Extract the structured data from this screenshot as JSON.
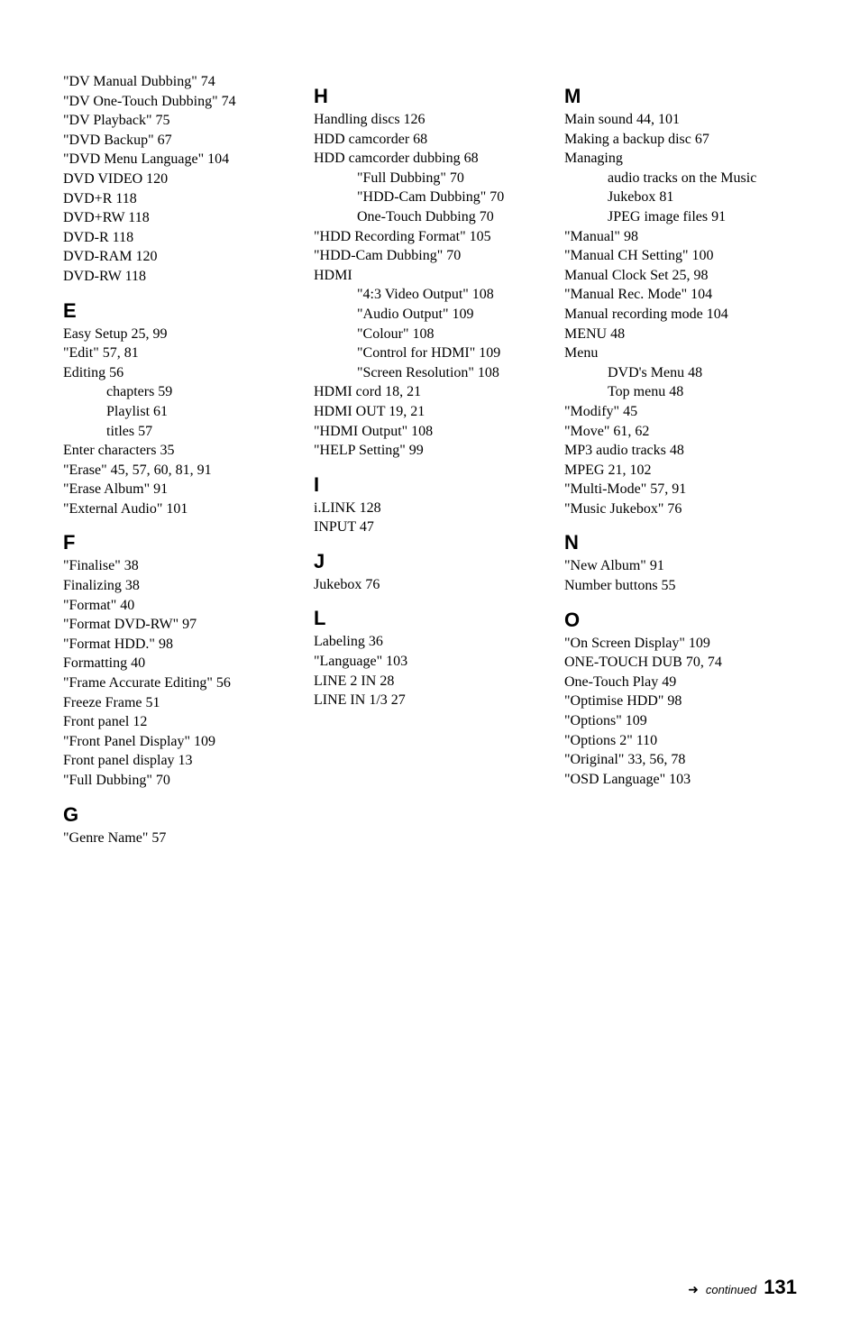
{
  "columns": [
    {
      "blocks": [
        {
          "letter": null,
          "entries": [
            {
              "text": "\"DV Manual Dubbing\" 74",
              "indent": 0
            },
            {
              "text": "\"DV One-Touch Dubbing\" 74",
              "indent": 0
            },
            {
              "text": "\"DV Playback\" 75",
              "indent": 0
            },
            {
              "text": "\"DVD Backup\" 67",
              "indent": 0
            },
            {
              "text": "\"DVD Menu Language\" 104",
              "indent": 0
            },
            {
              "text": "DVD VIDEO 120",
              "indent": 0
            },
            {
              "text": "DVD+R 118",
              "indent": 0
            },
            {
              "text": "DVD+RW 118",
              "indent": 0
            },
            {
              "text": "DVD-R 118",
              "indent": 0
            },
            {
              "text": "DVD-RAM 120",
              "indent": 0
            },
            {
              "text": "DVD-RW 118",
              "indent": 0
            }
          ]
        },
        {
          "letter": "E",
          "entries": [
            {
              "text": "Easy Setup 25, 99",
              "indent": 0
            },
            {
              "text": "\"Edit\" 57, 81",
              "indent": 0
            },
            {
              "text": "Editing 56",
              "indent": 0
            },
            {
              "text": "chapters 59",
              "indent": 1
            },
            {
              "text": "Playlist 61",
              "indent": 1
            },
            {
              "text": "titles 57",
              "indent": 1
            },
            {
              "text": "Enter characters 35",
              "indent": 0
            },
            {
              "text": "\"Erase\" 45, 57, 60, 81, 91",
              "indent": 0
            },
            {
              "text": "\"Erase Album\" 91",
              "indent": 0
            },
            {
              "text": "\"External Audio\" 101",
              "indent": 0
            }
          ]
        },
        {
          "letter": "F",
          "entries": [
            {
              "text": "\"Finalise\" 38",
              "indent": 0
            },
            {
              "text": "Finalizing 38",
              "indent": 0
            },
            {
              "text": "\"Format\" 40",
              "indent": 0
            },
            {
              "text": "\"Format DVD-RW\" 97",
              "indent": 0
            },
            {
              "text": "\"Format HDD.\" 98",
              "indent": 0
            },
            {
              "text": "Formatting 40",
              "indent": 0
            },
            {
              "text": "\"Frame Accurate Editing\" 56",
              "indent": 0
            },
            {
              "text": "Freeze Frame 51",
              "indent": 0
            },
            {
              "text": "Front panel 12",
              "indent": 0
            },
            {
              "text": "\"Front Panel Display\" 109",
              "indent": 0
            },
            {
              "text": "Front panel display 13",
              "indent": 0
            },
            {
              "text": "\"Full Dubbing\" 70",
              "indent": 0
            }
          ]
        },
        {
          "letter": "G",
          "entries": [
            {
              "text": "\"Genre Name\" 57",
              "indent": 0
            }
          ]
        }
      ]
    },
    {
      "blocks": [
        {
          "letter": "H",
          "entries": [
            {
              "text": "Handling discs 126",
              "indent": 0
            },
            {
              "text": "HDD camcorder 68",
              "indent": 0
            },
            {
              "text": "HDD camcorder dubbing 68",
              "indent": 0
            },
            {
              "text": "\"Full Dubbing\" 70",
              "indent": 1
            },
            {
              "text": "\"HDD-Cam Dubbing\" 70",
              "indent": 1
            },
            {
              "text": "One-Touch Dubbing 70",
              "indent": 1
            },
            {
              "text": "\"HDD Recording Format\" 105",
              "indent": 0
            },
            {
              "text": "\"HDD-Cam Dubbing\" 70",
              "indent": 0
            },
            {
              "text": "HDMI",
              "indent": 0
            },
            {
              "text": "\"4:3 Video Output\" 108",
              "indent": 1
            },
            {
              "text": "\"Audio Output\" 109",
              "indent": 1
            },
            {
              "text": "\"Colour\" 108",
              "indent": 1
            },
            {
              "text": "\"Control for HDMI\" 109",
              "indent": 1
            },
            {
              "text": "\"Screen Resolution\" 108",
              "indent": 1
            },
            {
              "text": "HDMI cord 18, 21",
              "indent": 0
            },
            {
              "text": "HDMI OUT 19, 21",
              "indent": 0
            },
            {
              "text": "\"HDMI Output\" 108",
              "indent": 0
            },
            {
              "text": "\"HELP Setting\" 99",
              "indent": 0
            }
          ]
        },
        {
          "letter": "I",
          "entries": [
            {
              "text": "i.LINK 128",
              "indent": 0
            },
            {
              "text": "INPUT 47",
              "indent": 0
            }
          ]
        },
        {
          "letter": "J",
          "entries": [
            {
              "text": "Jukebox 76",
              "indent": 0
            }
          ]
        },
        {
          "letter": "L",
          "entries": [
            {
              "text": "Labeling 36",
              "indent": 0
            },
            {
              "text": "\"Language\" 103",
              "indent": 0
            },
            {
              "text": "LINE 2 IN 28",
              "indent": 0
            },
            {
              "text": "LINE IN 1/3 27",
              "indent": 0
            }
          ]
        }
      ]
    },
    {
      "blocks": [
        {
          "letter": "M",
          "entries": [
            {
              "text": "Main sound 44, 101",
              "indent": 0
            },
            {
              "text": "Making a backup disc 67",
              "indent": 0
            },
            {
              "text": "Managing",
              "indent": 0
            },
            {
              "text": "audio tracks on the Music Jukebox 81",
              "indent": 1
            },
            {
              "text": "JPEG image files 91",
              "indent": 1
            },
            {
              "text": "\"Manual\" 98",
              "indent": 0
            },
            {
              "text": "\"Manual CH Setting\" 100",
              "indent": 0
            },
            {
              "text": "Manual Clock Set 25, 98",
              "indent": 0
            },
            {
              "text": "\"Manual Rec. Mode\" 104",
              "indent": 0
            },
            {
              "text": "Manual recording mode 104",
              "indent": 0
            },
            {
              "text": "MENU 48",
              "indent": 0
            },
            {
              "text": "Menu",
              "indent": 0
            },
            {
              "text": "DVD's Menu 48",
              "indent": 1
            },
            {
              "text": "Top menu 48",
              "indent": 1
            },
            {
              "text": "\"Modify\" 45",
              "indent": 0
            },
            {
              "text": "\"Move\" 61, 62",
              "indent": 0
            },
            {
              "text": "MP3 audio tracks 48",
              "indent": 0
            },
            {
              "text": "MPEG 21, 102",
              "indent": 0
            },
            {
              "text": "\"Multi-Mode\" 57, 91",
              "indent": 0
            },
            {
              "text": "\"Music Jukebox\" 76",
              "indent": 0
            }
          ]
        },
        {
          "letter": "N",
          "entries": [
            {
              "text": "\"New Album\" 91",
              "indent": 0
            },
            {
              "text": "Number buttons 55",
              "indent": 0
            }
          ]
        },
        {
          "letter": "O",
          "entries": [
            {
              "text": "\"On Screen Display\" 109",
              "indent": 0
            },
            {
              "text": "ONE-TOUCH DUB 70, 74",
              "indent": 0
            },
            {
              "text": "One-Touch Play 49",
              "indent": 0
            },
            {
              "text": "\"Optimise HDD\" 98",
              "indent": 0
            },
            {
              "text": "\"Options\" 109",
              "indent": 0
            },
            {
              "text": "\"Options 2\" 110",
              "indent": 0
            },
            {
              "text": "\"Original\" 33, 56, 78",
              "indent": 0
            },
            {
              "text": "\"OSD Language\" 103",
              "indent": 0
            }
          ]
        }
      ]
    }
  ],
  "footer": {
    "arrow": "➜",
    "continued": "continued",
    "page": "131"
  }
}
